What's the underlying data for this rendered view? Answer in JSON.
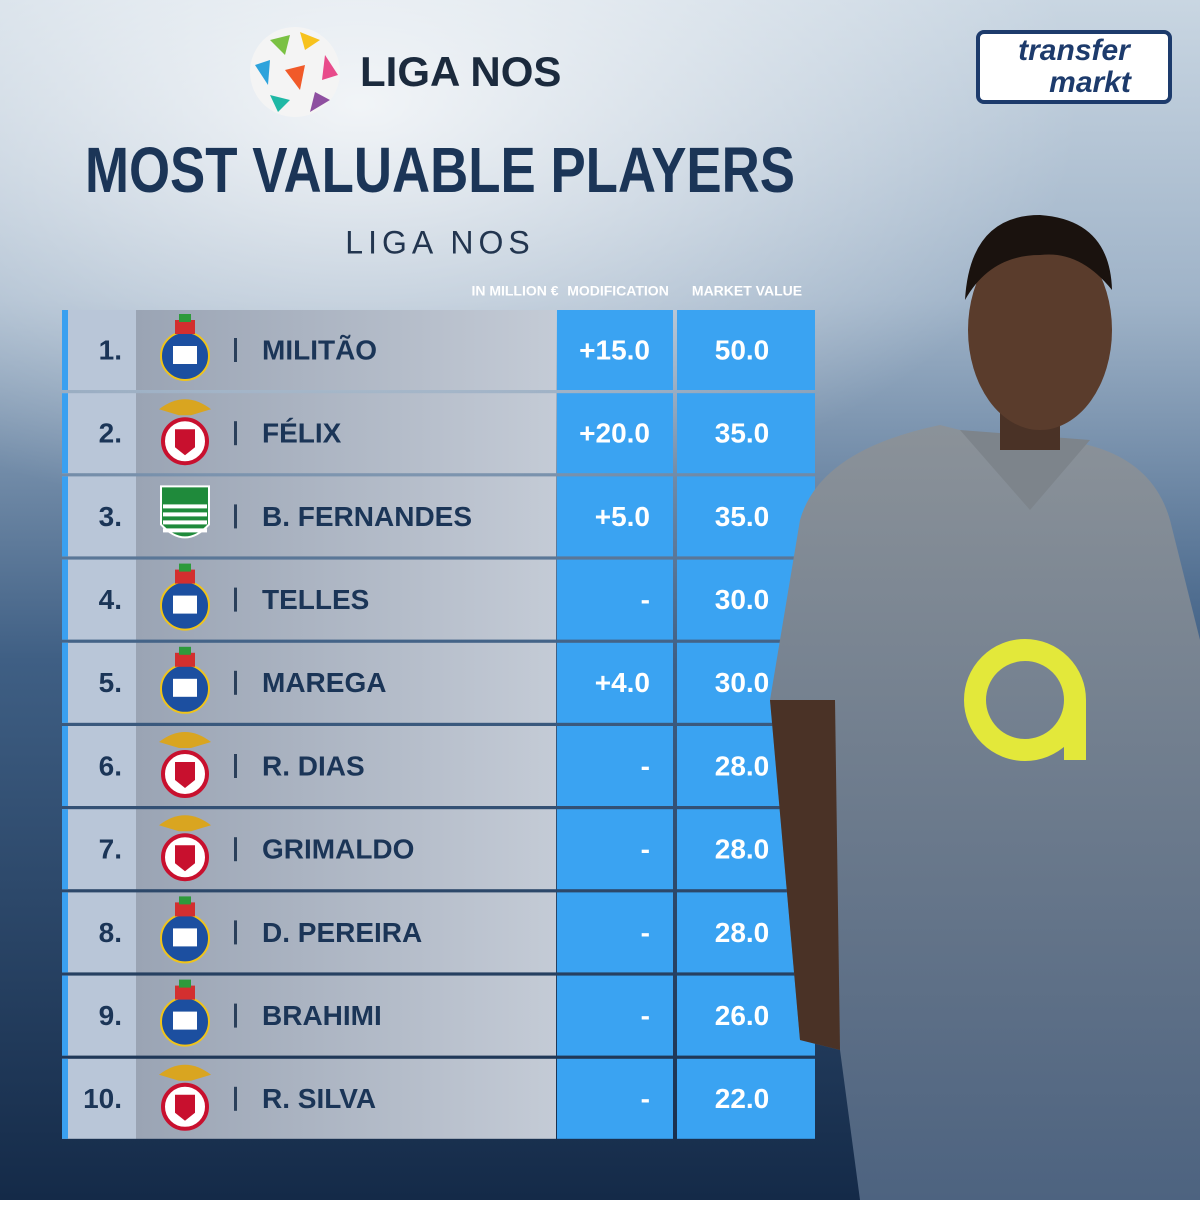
{
  "header": {
    "league_logo": "LIGA NOS",
    "brand": [
      "transfer",
      "markt"
    ],
    "title": "MOST VALUABLE PLAYERS",
    "subtitle": "LIGA NOS"
  },
  "table": {
    "columns": [
      "IN MILLION €",
      "MODIFICATION",
      "MARKET VALUE"
    ],
    "rows": [
      {
        "rank": "1.",
        "player": "MILITÃO",
        "modification": "+15.0",
        "market_value": "50.0"
      },
      {
        "rank": "2.",
        "player": "FÉLIX",
        "modification": "+20.0",
        "market_value": "35.0"
      },
      {
        "rank": "3.",
        "player": "B. FERNANDES",
        "modification": "+5.0",
        "market_value": "35.0"
      },
      {
        "rank": "4.",
        "player": "TELLES",
        "modification": "-",
        "market_value": "30.0"
      },
      {
        "rank": "5.",
        "player": "MAREGA",
        "modification": "+4.0",
        "market_value": "30.0"
      },
      {
        "rank": "6.",
        "player": "R. DIAS",
        "modification": "-",
        "market_value": "28.0"
      },
      {
        "rank": "7.",
        "player": "GRIMALDO",
        "modification": "-",
        "market_value": "28.0"
      },
      {
        "rank": "8.",
        "player": "D. PEREIRA",
        "modification": "-",
        "market_value": "28.0"
      },
      {
        "rank": "9.",
        "player": "BRAHIMI",
        "modification": "-",
        "market_value": "26.0"
      },
      {
        "rank": "10.",
        "player": "R. SILVA",
        "modification": "-",
        "market_value": "22.0"
      }
    ]
  }
}
